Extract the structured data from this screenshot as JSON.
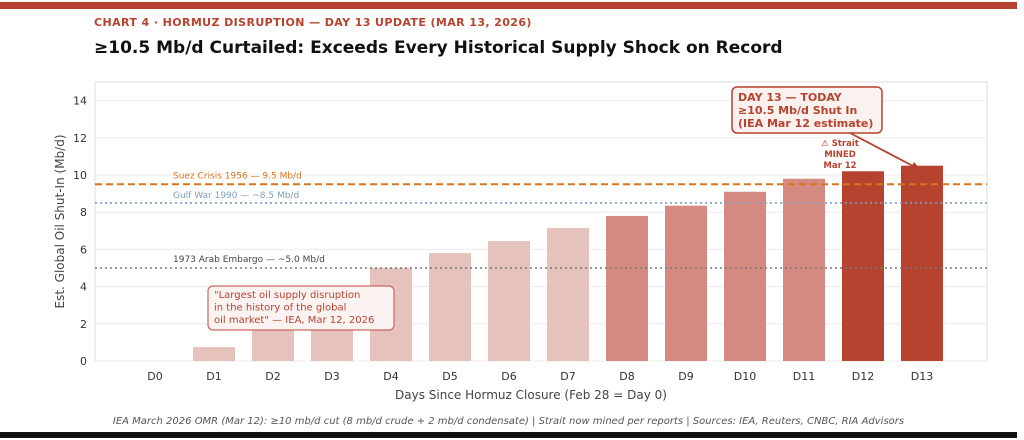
{
  "header": {
    "kicker": "CHART 4  ·  HORMUZ DISRUPTION — DAY 13 UPDATE (MAR 13, 2026)",
    "title": "≥10.5 Mb/d Curtailed: Exceeds Every Historical Supply Shock on Record"
  },
  "footer": {
    "note": "IEA March 2026 OMR (Mar 12): ≥10 mb/d cut (8 mb/d crude + 2 mb/d condensate) | Strait now mined per reports | Sources: IEA, Reuters, CNBC, RIA Advisors"
  },
  "colors": {
    "accent": "#b5432f",
    "suez_line": "#d9741c",
    "gulf_line": "#7f9fbf",
    "embargo_line": "#777777"
  },
  "chart_data": {
    "type": "bar",
    "title": "≥10.5 Mb/d Curtailed: Exceeds Every Historical Supply Shock on Record",
    "xlabel": "Days Since Hormuz Closure (Feb 28 = Day 0)",
    "ylabel": "Est. Global Oil Shut-In (Mb/d)",
    "ylim": [
      0,
      15
    ],
    "yticks": [
      0,
      2,
      4,
      6,
      8,
      10,
      12,
      14
    ],
    "grid": true,
    "categories": [
      "D0",
      "D1",
      "D2",
      "D3",
      "D4",
      "D5",
      "D6",
      "D7",
      "D8",
      "D9",
      "D10",
      "D11",
      "D12",
      "D13"
    ],
    "values": [
      0,
      0.75,
      2.2,
      3.6,
      5.0,
      5.8,
      6.45,
      7.15,
      7.8,
      8.35,
      9.1,
      9.8,
      10.2,
      10.5
    ],
    "bar_colors": [
      "#e6c2bc",
      "#e6c2bc",
      "#e6c2bc",
      "#e6c2bc",
      "#e6c2bc",
      "#e6c2bc",
      "#e6c2bc",
      "#e6c2bc",
      "#d48a80",
      "#d48a80",
      "#d48a80",
      "#d48a80",
      "#b5432f",
      "#b5432f"
    ],
    "reference_lines": [
      {
        "label": "Suez Crisis 1956 — 9.5 Mb/d",
        "value": 9.5,
        "style": "dashed",
        "color": "#d9741c"
      },
      {
        "label": "Gulf War 1990 — ~8.5 Mb/d",
        "value": 8.5,
        "style": "dotted",
        "color": "#7f9fbf"
      },
      {
        "label": "1973 Arab Embargo — ~5.0 Mb/d",
        "value": 5.0,
        "style": "dotted",
        "color": "#777777"
      }
    ],
    "annotations": {
      "today_box": [
        "DAY 13 — TODAY",
        "≥10.5 Mb/d Shut In",
        "(IEA Mar 12 estimate)"
      ],
      "mined_note": [
        "⚠ Strait",
        "MINED",
        "Mar 12"
      ],
      "quote_box": [
        "\"Largest oil supply disruption",
        "in the history of the global",
        "oil market\" — IEA, Mar 12, 2026"
      ]
    }
  }
}
